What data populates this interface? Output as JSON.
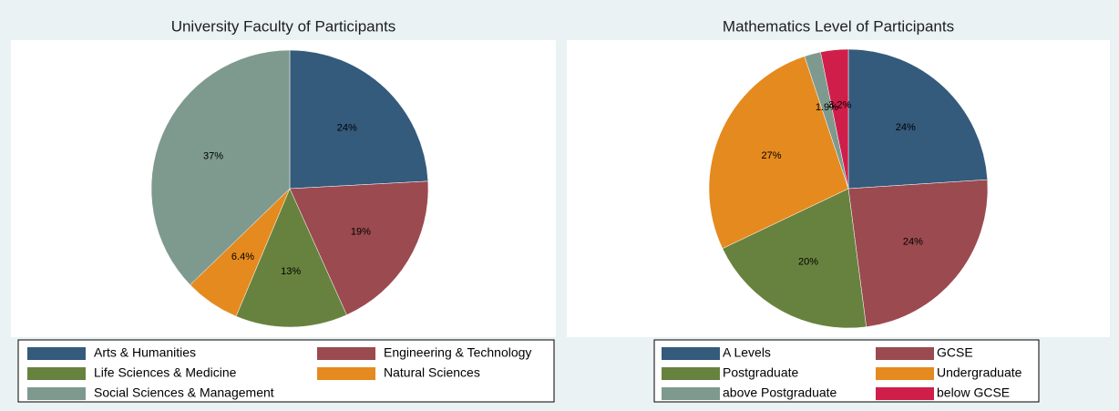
{
  "chart_data": [
    {
      "type": "pie",
      "title": "University Faculty of Participants",
      "categories": [
        "Arts & Humanities",
        "Engineering & Technology",
        "Life Sciences & Medicine",
        "Natural Sciences",
        "Social Sciences & Management"
      ],
      "values": [
        24,
        19,
        13,
        6.4,
        37
      ],
      "value_labels": [
        "24%",
        "19%",
        "13%",
        "6.4%",
        "37%"
      ],
      "colors": [
        "#345a7c",
        "#9b4a4f",
        "#67823e",
        "#e58a1e",
        "#7e9a8f"
      ]
    },
    {
      "type": "pie",
      "title": "Mathematics Level of Participants",
      "categories": [
        "A Levels",
        "GCSE",
        "Postgraduate",
        "Undergraduate",
        "above Postgraduate",
        "below GCSE"
      ],
      "values": [
        24,
        24,
        20,
        27,
        1.9,
        3.2
      ],
      "value_labels": [
        "24%",
        "24%",
        "20%",
        "27%",
        "1.9%",
        "3.2%"
      ],
      "colors": [
        "#345a7c",
        "#9b4a4f",
        "#67823e",
        "#e58a1e",
        "#7e9a8f",
        "#cf1e4a"
      ]
    }
  ]
}
